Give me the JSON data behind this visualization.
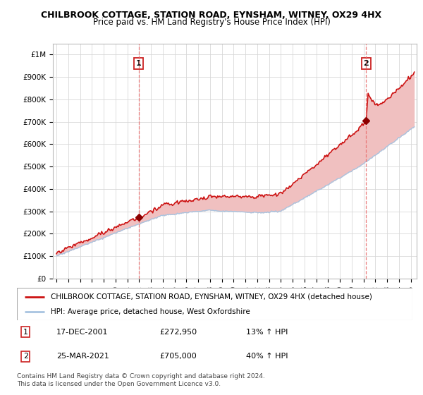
{
  "title": "CHILBROOK COTTAGE, STATION ROAD, EYNSHAM, WITNEY, OX29 4HX",
  "subtitle": "Price paid vs. HM Land Registry's House Price Index (HPI)",
  "ylabel_ticks": [
    "£0",
    "£100K",
    "£200K",
    "£300K",
    "£400K",
    "£500K",
    "£600K",
    "£700K",
    "£800K",
    "£900K",
    "£1M"
  ],
  "ytick_values": [
    0,
    100000,
    200000,
    300000,
    400000,
    500000,
    600000,
    700000,
    800000,
    900000,
    1000000
  ],
  "ylim": [
    0,
    1050000
  ],
  "xlim_start": 1994.7,
  "xlim_end": 2025.5,
  "sale1_x": 2001.96,
  "sale1_y": 272950,
  "sale2_x": 2021.23,
  "sale2_y": 705000,
  "sale1_label": "1",
  "sale2_label": "2",
  "hpi_color": "#a8c4e0",
  "property_color": "#cc1111",
  "sale_dot_color": "#8b0000",
  "vline_color": "#e87070",
  "background_color": "#ffffff",
  "grid_color": "#d8d8d8",
  "fill_blue_color": "#c8ddf0",
  "fill_red_color": "#f0c0c0",
  "legend_property": "CHILBROOK COTTAGE, STATION ROAD, EYNSHAM, WITNEY, OX29 4HX (detached house)",
  "legend_hpi": "HPI: Average price, detached house, West Oxfordshire",
  "table_row1": [
    "1",
    "17-DEC-2001",
    "£272,950",
    "13% ↑ HPI"
  ],
  "table_row2": [
    "2",
    "25-MAR-2021",
    "£705,000",
    "40% ↑ HPI"
  ],
  "footnote": "Contains HM Land Registry data © Crown copyright and database right 2024.\nThis data is licensed under the Open Government Licence v3.0.",
  "title_fontsize": 9,
  "subtitle_fontsize": 8.5,
  "tick_fontsize": 7.5,
  "legend_fontsize": 7.5,
  "table_fontsize": 8,
  "footnote_fontsize": 6.5
}
